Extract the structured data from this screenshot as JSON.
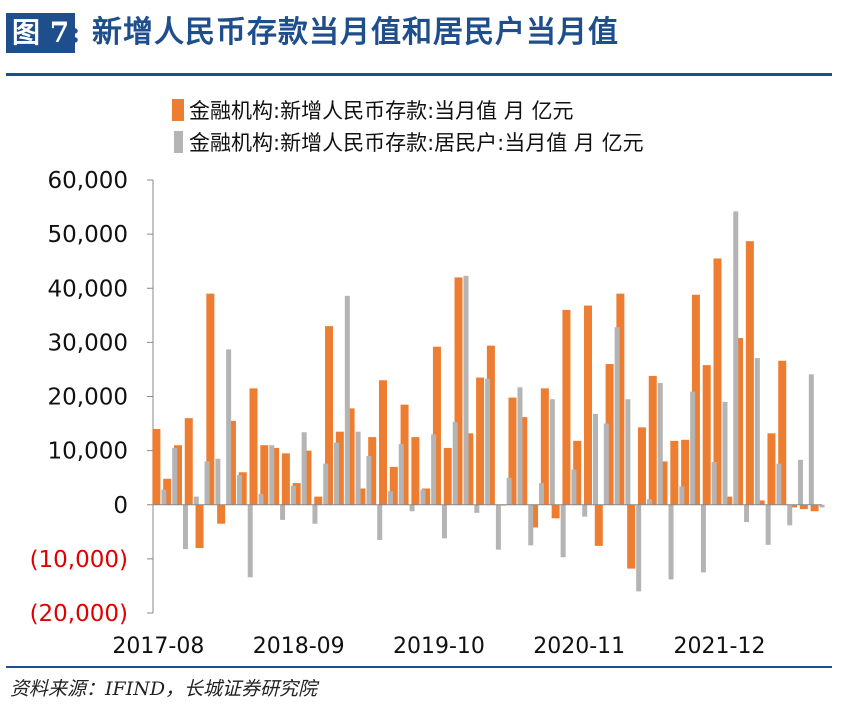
{
  "header": {
    "figure_label": "图 7",
    "title": "新增人民币存款当月值和居民户当月值"
  },
  "source_note": "资料来源：IFIND，长城证券研究院",
  "colors": {
    "series1": "#ed7d31",
    "series2": "#b4b4b4",
    "accent": "#1f4e8c",
    "negative_tick": "#e00000"
  },
  "chart_data": {
    "type": "bar",
    "legend_position": "top-left",
    "ylim": [
      -20000,
      60000
    ],
    "yticks": [
      60000,
      50000,
      40000,
      30000,
      20000,
      10000,
      0,
      -10000,
      -20000
    ],
    "ytick_labels": [
      "60,000",
      "50,000",
      "40,000",
      "30,000",
      "20,000",
      "10,000",
      "0",
      "(10,000)",
      "(20,000)"
    ],
    "xtick_labels": [
      "2017-08",
      "2018-09",
      "2019-10",
      "2020-11",
      "2021-12"
    ],
    "xtick_indices": [
      0,
      13,
      26,
      39,
      52
    ],
    "categories": [
      "2017-08",
      "2017-09",
      "2017-10",
      "2017-11",
      "2017-12",
      "2018-01",
      "2018-02",
      "2018-03",
      "2018-04",
      "2018-05",
      "2018-06",
      "2018-07",
      "2018-08",
      "2018-09",
      "2018-10",
      "2018-11",
      "2018-12",
      "2019-01",
      "2019-02",
      "2019-03",
      "2019-04",
      "2019-05",
      "2019-06",
      "2019-07",
      "2019-08",
      "2019-09",
      "2019-10",
      "2019-11",
      "2019-12",
      "2020-01",
      "2020-02",
      "2020-03",
      "2020-04",
      "2020-05",
      "2020-06",
      "2020-07",
      "2020-08",
      "2020-09",
      "2020-10",
      "2020-11",
      "2020-12",
      "2021-01",
      "2021-02",
      "2021-03",
      "2021-04",
      "2021-05",
      "2021-06",
      "2021-07",
      "2021-08",
      "2021-09",
      "2021-10",
      "2021-11",
      "2021-12",
      "2022-01",
      "2022-02",
      "2022-03",
      "2022-04",
      "2022-05",
      "2022-06",
      "2022-07",
      "2022-08",
      "2022-09"
    ],
    "series": [
      {
        "name": "金融机构:新增人民币存款:当月值 月 亿元",
        "values": [
          14000,
          4800,
          11000,
          16000,
          -8000,
          39000,
          -3500,
          15500,
          6000,
          21500,
          11000,
          10500,
          9500,
          4000,
          10000,
          1500,
          33000,
          13500,
          17800,
          3000,
          12500,
          23000,
          7000,
          18500,
          12500,
          3000,
          29200,
          10500,
          42000,
          13200,
          23500,
          29400,
          -100,
          19800,
          16200,
          -4200,
          21500,
          -2500,
          36000,
          11800,
          36800,
          -7600,
          26000,
          39000,
          -11800,
          14300,
          23800,
          8000,
          11800,
          12000,
          38800,
          25800,
          45500,
          1500,
          30800,
          48700,
          800,
          13200,
          26600,
          -500,
          -800,
          -1200
        ]
      },
      {
        "name": "金融机构:新增人民币存款:居民户:当月值 月 亿元",
        "values": [
          2800,
          10500,
          -8200,
          1500,
          8000,
          8500,
          28700,
          5500,
          -13400,
          2000,
          11000,
          -2800,
          3500,
          13400,
          -3500,
          7600,
          11500,
          38600,
          13500,
          9000,
          -6500,
          2500,
          11200,
          -1200,
          2800,
          13000,
          -6200,
          15300,
          42300,
          -1500,
          23300,
          -8300,
          5000,
          21700,
          -7500,
          4000,
          19500,
          -9700,
          6500,
          -2200,
          16800,
          15000,
          32800,
          19500,
          -16000,
          1000,
          22500,
          -13800,
          3400,
          20900,
          -12500,
          7900,
          19000,
          54200,
          -3200,
          27100,
          -7400,
          7600,
          -3800,
          8300,
          24100,
          -500
        ]
      }
    ]
  }
}
